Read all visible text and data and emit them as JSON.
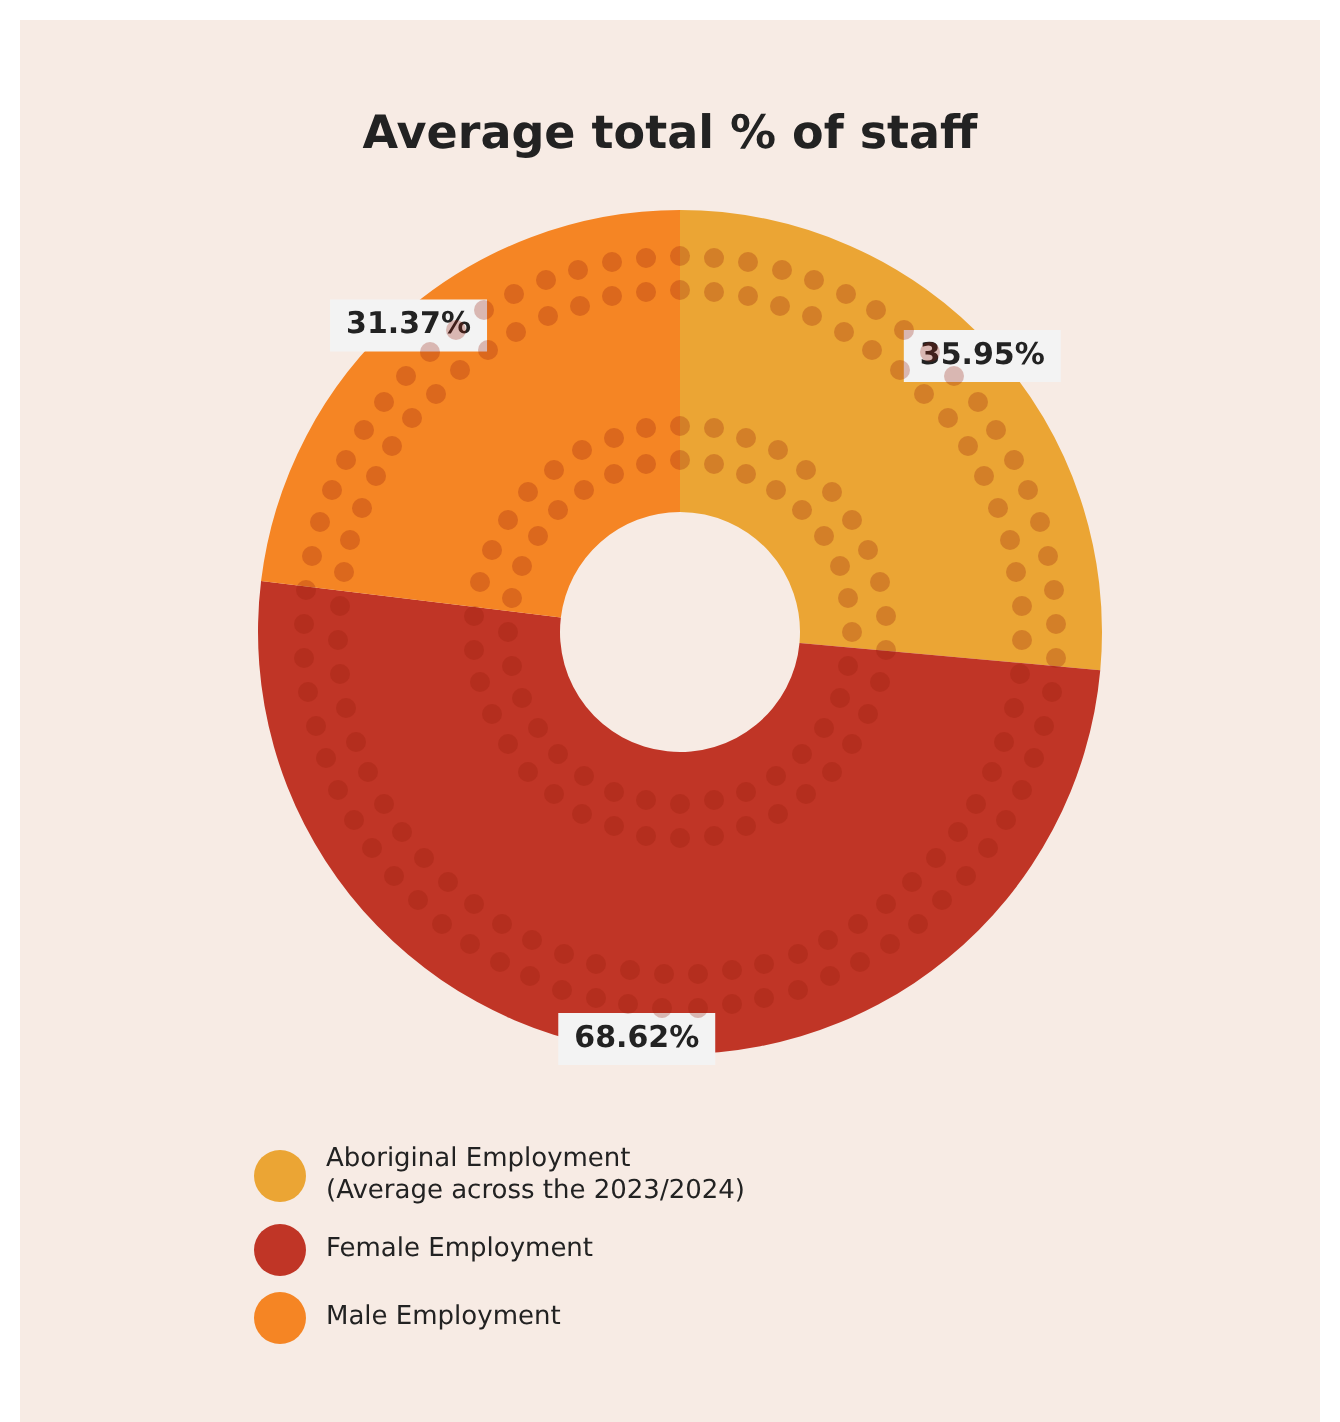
{
  "chart_data": {
    "type": "donut",
    "title": "Average total % of staff",
    "categories": [
      "Aboriginal Employment\n(Average across the 2023/2024)",
      "Female Employment",
      "Male Employment"
    ],
    "values": [
      35.95,
      68.62,
      31.37
    ],
    "colors": [
      "#eba534",
      "#c03526",
      "#f58524"
    ],
    "value_labels": [
      "35.95%",
      "68.62%",
      "31.37%"
    ],
    "legend": "bottom left"
  }
}
